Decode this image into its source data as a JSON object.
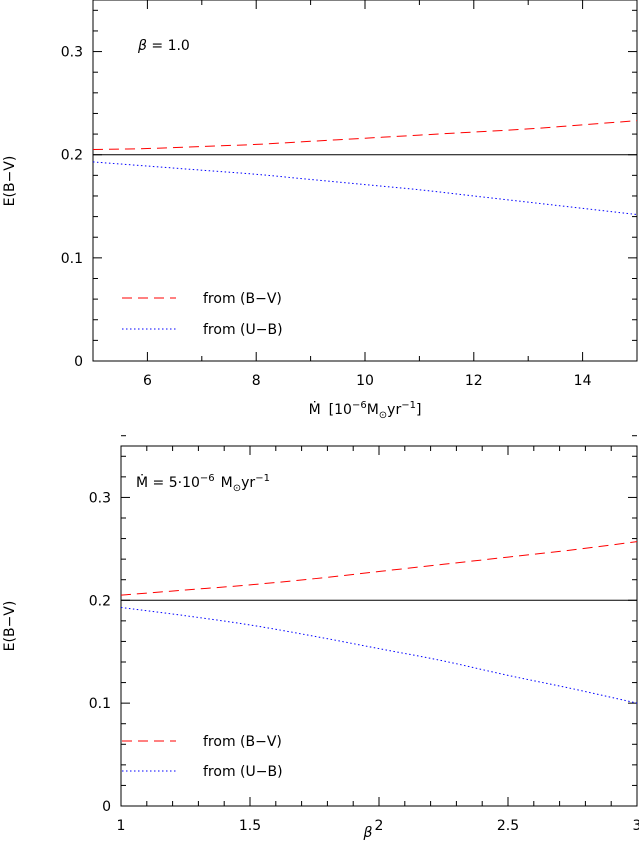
{
  "chart_data": [
    {
      "type": "line",
      "annotation_symbol": "β",
      "annotation_rest": " = 1.0",
      "xlabel_symbol": "Ṁ",
      "xlabel_pre": "[10",
      "xlabel_exp": "−6",
      "xlabel_unit": "M",
      "xlabel_sun": "⊙",
      "xlabel_mid": "yr",
      "xlabel_exp2": "−1",
      "xlabel_post": "]",
      "ylabel": "E(B−V)",
      "xlim": [
        5,
        15
      ],
      "ylim": [
        0,
        0.35
      ],
      "xticks": [
        "6",
        "8",
        "10",
        "12",
        "14"
      ],
      "yticks": [
        "0",
        "0.1",
        "0.2",
        "0.3"
      ],
      "reference_line": 0.2,
      "legend_placement": "bottom-left",
      "series": [
        {
          "name": "from (B−V)",
          "color": "#ff0000",
          "style": "dashed",
          "x": [
            5,
            6,
            7,
            8,
            9,
            10,
            11,
            12,
            13,
            14,
            15
          ],
          "y": [
            0.205,
            0.206,
            0.208,
            0.21,
            0.213,
            0.216,
            0.219,
            0.222,
            0.225,
            0.229,
            0.233
          ]
        },
        {
          "name": "from (U−B)",
          "color": "#0000ff",
          "style": "dotted",
          "x": [
            5,
            6,
            7,
            8,
            9,
            10,
            11,
            12,
            13,
            14,
            15
          ],
          "y": [
            0.193,
            0.189,
            0.185,
            0.181,
            0.176,
            0.171,
            0.166,
            0.16,
            0.154,
            0.148,
            0.142
          ]
        }
      ]
    },
    {
      "type": "line",
      "annotation_symbol": "Ṁ",
      "annotation_pre": " = 5·10",
      "annotation_exp": "−6",
      "annotation_unit": "M",
      "annotation_sun": "⊙",
      "annotation_mid": "yr",
      "annotation_exp2": "−1",
      "xlabel": "β",
      "ylabel": "E(B−V)",
      "xlim": [
        1,
        3
      ],
      "ylim": [
        0,
        0.35
      ],
      "xticks": [
        "1",
        "1.5",
        "2",
        "2.5",
        "3"
      ],
      "yticks": [
        "0",
        "0.1",
        "0.2",
        "0.3"
      ],
      "reference_line": 0.2,
      "legend_placement": "bottom-left",
      "series": [
        {
          "name": "from (B−V)",
          "color": "#ff0000",
          "style": "dashed",
          "x": [
            1.0,
            1.25,
            1.5,
            1.75,
            2.0,
            2.25,
            2.5,
            2.75,
            3.0
          ],
          "y": [
            0.205,
            0.21,
            0.215,
            0.221,
            0.228,
            0.235,
            0.242,
            0.249,
            0.257
          ]
        },
        {
          "name": "from (U−B)",
          "color": "#0000ff",
          "style": "dotted",
          "x": [
            1.0,
            1.25,
            1.5,
            1.75,
            2.0,
            2.25,
            2.5,
            2.75,
            3.0
          ],
          "y": [
            0.193,
            0.185,
            0.176,
            0.165,
            0.153,
            0.141,
            0.127,
            0.114,
            0.1
          ]
        }
      ]
    }
  ]
}
